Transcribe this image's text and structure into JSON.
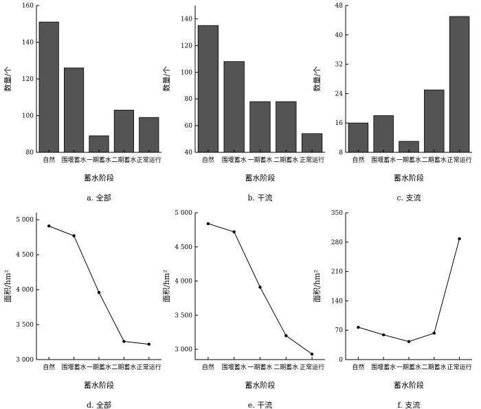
{
  "chart_data": [
    {
      "type": "bar",
      "caption": "a.  全部",
      "categories": [
        "自然",
        "围堰蓄水",
        "一期蓄水",
        "二期蓄水",
        "正常运行"
      ],
      "values": [
        151,
        126,
        89,
        103,
        99
      ],
      "xlabel": "蓄水阶段",
      "ylabel": "数量/个",
      "ylim": [
        80,
        160
      ],
      "yticks": [
        80,
        100,
        120,
        140,
        160
      ],
      "ytick_labels": [
        "80",
        "100",
        "120",
        "140",
        "160"
      ],
      "grid": false
    },
    {
      "type": "bar",
      "caption": "b.  干流",
      "categories": [
        "自然",
        "围堰蓄水",
        "一期蓄水",
        "二期蓄水",
        "正常运行"
      ],
      "values": [
        135,
        108,
        78,
        78,
        54
      ],
      "xlabel": "蓄水阶段",
      "ylabel": "数量/个",
      "ylim": [
        40,
        150
      ],
      "yticks": [
        40,
        60,
        80,
        100,
        120,
        140
      ],
      "ytick_labels": [
        "40",
        "60",
        "80",
        "100",
        "120",
        "140"
      ],
      "grid": false
    },
    {
      "type": "bar",
      "caption": "c.  支流",
      "categories": [
        "自然",
        "围堰蓄水",
        "一期蓄水",
        "二期蓄水",
        "正常运行"
      ],
      "values": [
        16,
        18,
        11,
        25,
        45
      ],
      "xlabel": "蓄水阶段",
      "ylabel": "数量/个",
      "ylim": [
        8,
        48
      ],
      "yticks": [
        8,
        16,
        24,
        32,
        40,
        48
      ],
      "ytick_labels": [
        "8",
        "16",
        "24",
        "32",
        "40",
        "48"
      ],
      "grid": false
    },
    {
      "type": "line",
      "caption": "d.  全部",
      "categories": [
        "自然",
        "围堰蓄水",
        "一期蓄水",
        "二期蓄水",
        "正常运行"
      ],
      "values": [
        4910,
        4770,
        3960,
        3260,
        3220
      ],
      "xlabel": "蓄水阶段",
      "ylabel": "面积/hm²",
      "ylim": [
        3000,
        5100
      ],
      "yticks": [
        3000,
        3500,
        4000,
        4500,
        5000
      ],
      "ytick_labels": [
        "3 000",
        "3 500",
        "4 000",
        "4 500",
        "5 000"
      ],
      "grid": false
    },
    {
      "type": "line",
      "caption": "e.  干流",
      "categories": [
        "自然",
        "围堰蓄水",
        "一期蓄水",
        "二期蓄水",
        "正常运行"
      ],
      "values": [
        4840,
        4720,
        3910,
        3200,
        2930
      ],
      "xlabel": "蓄水阶段",
      "ylabel": "面积/hm²",
      "ylim": [
        2850,
        5000
      ],
      "yticks": [
        3000,
        3500,
        4000,
        4500,
        5000
      ],
      "ytick_labels": [
        "3 000",
        "3 500",
        "4 000",
        "4 500",
        "5 000"
      ],
      "grid": false
    },
    {
      "type": "line",
      "caption": "f.  支流",
      "categories": [
        "自然",
        "围堰蓄水",
        "一期蓄水",
        "二期蓄水",
        "正常运行"
      ],
      "values": [
        77,
        59,
        43,
        63,
        288
      ],
      "xlabel": "蓄水阶段",
      "ylabel": "面积/hm²",
      "ylim": [
        0,
        350
      ],
      "yticks": [
        0,
        70,
        140,
        210,
        280,
        350
      ],
      "ytick_labels": [
        "0",
        "70",
        "140",
        "210",
        "280",
        "350"
      ],
      "grid": false
    }
  ]
}
